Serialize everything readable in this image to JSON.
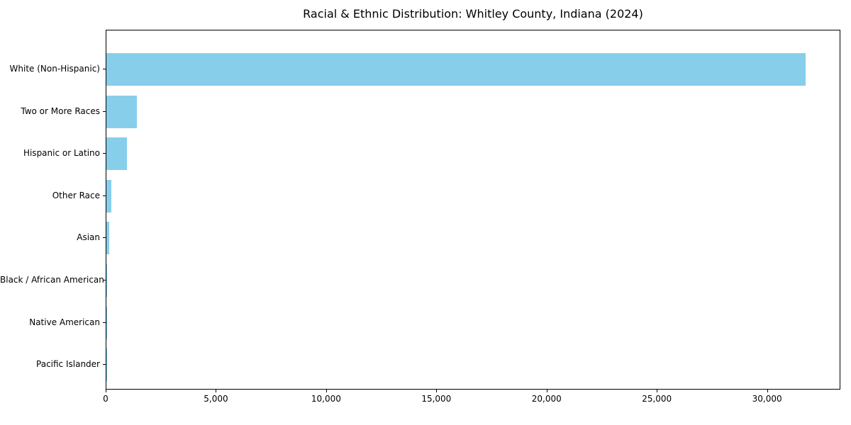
{
  "chart_data": {
    "type": "bar",
    "orientation": "horizontal",
    "title": "Racial & Ethnic Distribution: Whitley County, Indiana (2024)",
    "categories": [
      "White (Non-Hispanic)",
      "Two or More Races",
      "Hispanic or Latino",
      "Other Race",
      "Asian",
      "Black / African American",
      "Native American",
      "Pacific Islander"
    ],
    "values": [
      31700,
      1370,
      940,
      235,
      120,
      45,
      15,
      5
    ],
    "xlabel": "",
    "ylabel": "",
    "xlim": [
      0,
      33260
    ],
    "x_ticks": [
      0,
      5000,
      10000,
      15000,
      20000,
      25000,
      30000
    ],
    "x_tick_labels": [
      "0",
      "5,000",
      "10,000",
      "15,000",
      "20,000",
      "25,000",
      "30,000"
    ],
    "bar_color": "#87CEEB",
    "axis_color": "#000000",
    "background_color": "#ffffff",
    "grid": false,
    "legend_position": "none"
  }
}
